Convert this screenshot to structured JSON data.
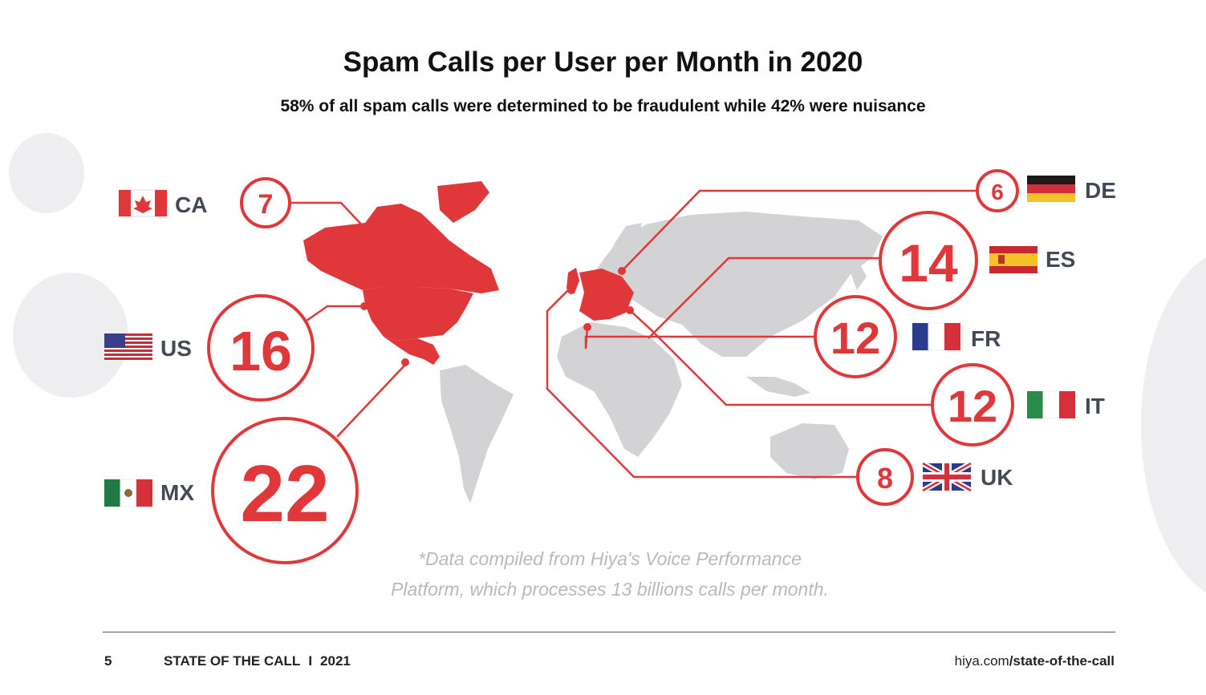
{
  "title": "Spam Calls per User per Month in 2020",
  "subtitle": "58% of all spam calls were determined to be fraudulent while 42% were nuisance",
  "countries": [
    {
      "code": "CA",
      "value": "7"
    },
    {
      "code": "US",
      "value": "16"
    },
    {
      "code": "MX",
      "value": "22"
    },
    {
      "code": "DE",
      "value": "6"
    },
    {
      "code": "ES",
      "value": "14"
    },
    {
      "code": "FR",
      "value": "12"
    },
    {
      "code": "IT",
      "value": "12"
    },
    {
      "code": "UK",
      "value": "8"
    }
  ],
  "note": {
    "line1": "*Data compiled from Hiya's Voice Performance",
    "line2": "Platform, which processes 13 billions calls per month."
  },
  "footer": {
    "page": "5",
    "report": "STATE OF THE CALL",
    "divider": "I",
    "year": "2021",
    "url_domain": "hiya.com",
    "url_path": "/state-of-the-call"
  },
  "colors": {
    "accent": "#e0383a",
    "map_gray": "#d3d3d6",
    "decor_gray": "#eeeef0"
  }
}
